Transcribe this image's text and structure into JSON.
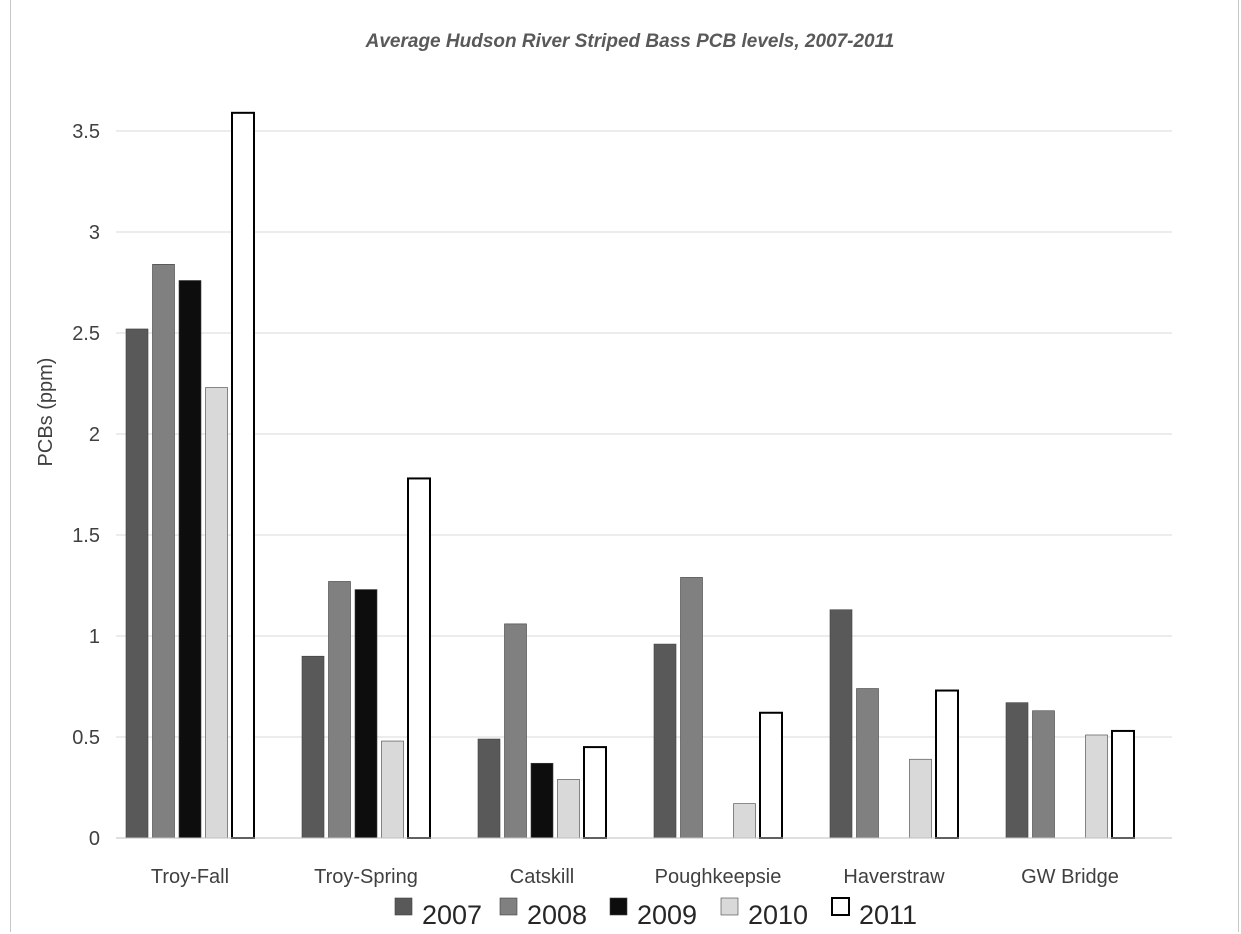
{
  "chart_data": {
    "type": "bar",
    "title": "Average Hudson River Striped Bass PCB levels, 2007-2011",
    "xlabel": "",
    "ylabel": "PCBs (ppm)",
    "ylim": [
      0,
      3.5
    ],
    "yticks": [
      "0",
      "0.5",
      "1",
      "1.5",
      "2",
      "2.5",
      "3",
      "3.5"
    ],
    "grid": true,
    "legend_position": "bottom",
    "categories": [
      "Troy-Fall",
      "Troy-Spring",
      "Catskill",
      "Poughkeepsie",
      "Haverstraw",
      "GW  Bridge"
    ],
    "series": [
      {
        "name": "2007",
        "color": "#595959",
        "style": "filled",
        "values": [
          2.52,
          0.9,
          0.49,
          0.96,
          1.13,
          0.67
        ]
      },
      {
        "name": "2008",
        "color": "#808080",
        "style": "filled",
        "values": [
          2.84,
          1.27,
          1.06,
          1.29,
          0.74,
          0.63
        ]
      },
      {
        "name": "2009",
        "color": "#0d0d0d",
        "style": "filled",
        "values": [
          2.76,
          1.23,
          0.37,
          null,
          null,
          null
        ]
      },
      {
        "name": "2010",
        "color": "#d9d9d9",
        "style": "filled",
        "values": [
          2.23,
          0.48,
          0.29,
          0.17,
          0.39,
          0.51
        ]
      },
      {
        "name": "2011",
        "color": "#000000",
        "style": "outline",
        "values": [
          3.59,
          1.78,
          0.45,
          0.62,
          0.73,
          0.53
        ]
      }
    ]
  }
}
